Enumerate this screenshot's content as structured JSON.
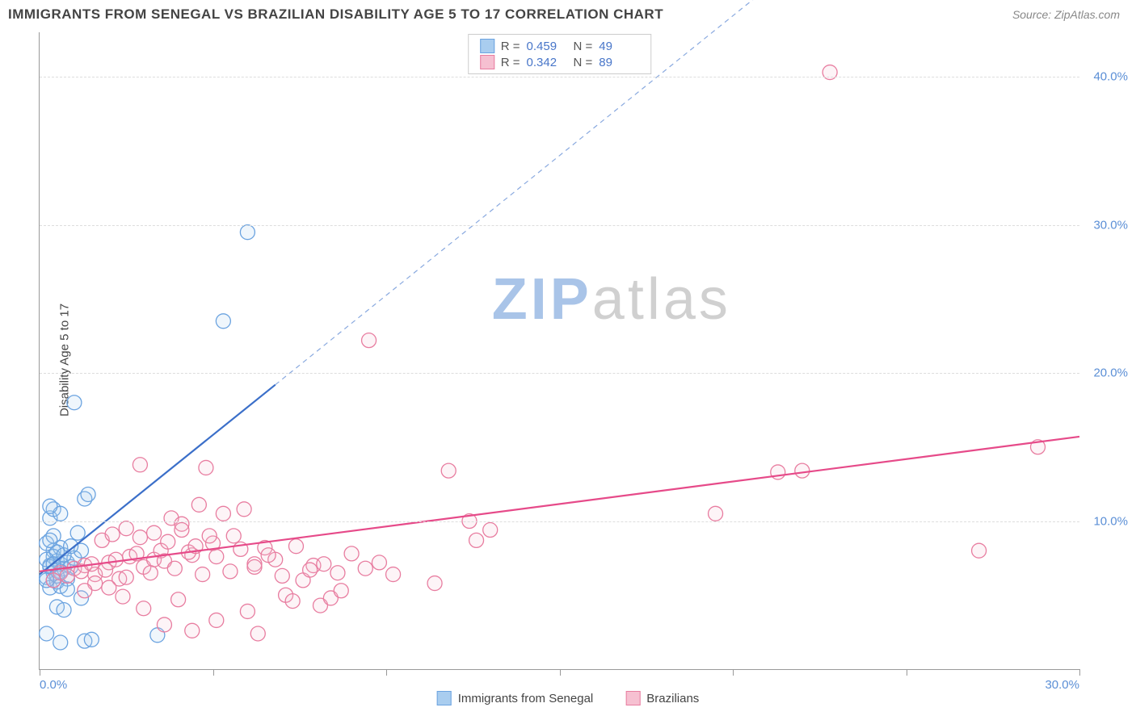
{
  "title": "IMMIGRANTS FROM SENEGAL VS BRAZILIAN DISABILITY AGE 5 TO 17 CORRELATION CHART",
  "source": "Source: ZipAtlas.com",
  "ylabel": "Disability Age 5 to 17",
  "watermark": {
    "part1": "ZIP",
    "part2": "atlas",
    "color1": "#a9c4e8",
    "color2": "#d0d0d0"
  },
  "chart": {
    "type": "scatter",
    "background_color": "#ffffff",
    "grid_color": "#dddddd",
    "axis_color": "#999999",
    "xlim": [
      0,
      30
    ],
    "ylim": [
      0,
      43
    ],
    "xticks": [
      0,
      5,
      10,
      15,
      20,
      25,
      30
    ],
    "yticks": [
      10,
      20,
      30,
      40
    ],
    "xtick_labels": {
      "0": "0.0%",
      "30": "30.0%"
    },
    "ytick_labels": {
      "10": "10.0%",
      "20": "20.0%",
      "30": "30.0%",
      "40": "40.0%"
    },
    "ytick_color": "#5b8fd6",
    "xtick_color": "#5b8fd6",
    "marker_radius": 9,
    "marker_stroke_width": 1.3,
    "marker_fill_opacity": 0.18,
    "line_width": 2.2,
    "dash_pattern": "6,5"
  },
  "series": [
    {
      "name": "Immigrants from Senegal",
      "color_stroke": "#6ba3e0",
      "color_fill": "#a9cdef",
      "line_color": "#3b6fc9",
      "R": "0.459",
      "N": "49",
      "trend": {
        "x1": 0,
        "y1": 6.4,
        "x2": 6.8,
        "y2": 19.2,
        "ext_x2": 21,
        "ext_y2": 46
      },
      "points": [
        [
          0.2,
          6.2
        ],
        [
          0.3,
          7.0
        ],
        [
          0.4,
          6.5
        ],
        [
          0.5,
          7.3
        ],
        [
          0.4,
          8.0
        ],
        [
          0.6,
          7.1
        ],
        [
          0.7,
          6.8
        ],
        [
          0.3,
          5.5
        ],
        [
          0.5,
          5.9
        ],
        [
          0.2,
          8.5
        ],
        [
          0.8,
          7.2
        ],
        [
          0.9,
          6.9
        ],
        [
          0.4,
          9.0
        ],
        [
          0.6,
          8.2
        ],
        [
          1.0,
          7.5
        ],
        [
          1.2,
          8.0
        ],
        [
          0.3,
          10.2
        ],
        [
          0.4,
          10.8
        ],
        [
          0.6,
          10.5
        ],
        [
          1.1,
          9.2
        ],
        [
          1.3,
          11.5
        ],
        [
          1.4,
          11.8
        ],
        [
          0.3,
          11.0
        ],
        [
          0.5,
          4.2
        ],
        [
          0.7,
          4.0
        ],
        [
          1.2,
          4.8
        ],
        [
          0.2,
          2.4
        ],
        [
          0.6,
          1.8
        ],
        [
          1.3,
          1.9
        ],
        [
          1.5,
          2.0
        ],
        [
          3.4,
          2.3
        ],
        [
          1.0,
          18.0
        ],
        [
          5.3,
          23.5
        ],
        [
          6.0,
          29.5
        ],
        [
          0.4,
          7.6
        ],
        [
          0.6,
          6.6
        ],
        [
          0.8,
          6.1
        ],
        [
          0.3,
          6.9
        ],
        [
          0.5,
          7.9
        ],
        [
          0.2,
          7.4
        ],
        [
          0.4,
          6.0
        ],
        [
          0.7,
          7.7
        ],
        [
          0.9,
          8.3
        ],
        [
          0.3,
          8.7
        ],
        [
          0.5,
          6.3
        ],
        [
          0.6,
          5.6
        ],
        [
          0.8,
          5.4
        ],
        [
          0.2,
          6.0
        ],
        [
          0.4,
          7.1
        ]
      ]
    },
    {
      "name": "Brazilians",
      "color_stroke": "#e87da0",
      "color_fill": "#f6c0d1",
      "line_color": "#e64a89",
      "R": "0.342",
      "N": "89",
      "trend": {
        "x1": 0,
        "y1": 6.6,
        "x2": 30,
        "y2": 15.7,
        "ext_x2": 30,
        "ext_y2": 15.7
      },
      "points": [
        [
          0.6,
          6.5
        ],
        [
          1.0,
          6.8
        ],
        [
          1.3,
          7.0
        ],
        [
          1.6,
          6.4
        ],
        [
          2.0,
          7.2
        ],
        [
          2.3,
          6.1
        ],
        [
          2.6,
          7.6
        ],
        [
          3.0,
          6.9
        ],
        [
          3.3,
          7.4
        ],
        [
          3.5,
          8.0
        ],
        [
          3.8,
          10.2
        ],
        [
          4.1,
          9.8
        ],
        [
          4.4,
          7.7
        ],
        [
          4.6,
          11.1
        ],
        [
          5.0,
          8.5
        ],
        [
          5.3,
          10.5
        ],
        [
          5.6,
          9.0
        ],
        [
          5.9,
          10.8
        ],
        [
          6.2,
          7.1
        ],
        [
          6.5,
          8.2
        ],
        [
          6.8,
          7.4
        ],
        [
          7.1,
          5.0
        ],
        [
          7.3,
          4.6
        ],
        [
          7.6,
          6.0
        ],
        [
          2.9,
          13.8
        ],
        [
          4.8,
          13.6
        ],
        [
          9.5,
          22.2
        ],
        [
          12.4,
          10.0
        ],
        [
          12.6,
          8.7
        ],
        [
          13.0,
          9.4
        ],
        [
          8.1,
          4.3
        ],
        [
          8.4,
          4.8
        ],
        [
          8.7,
          5.3
        ],
        [
          7.9,
          7.0
        ],
        [
          6.0,
          3.9
        ],
        [
          6.3,
          2.4
        ],
        [
          5.1,
          3.3
        ],
        [
          4.4,
          2.6
        ],
        [
          4.0,
          4.7
        ],
        [
          3.6,
          3.0
        ],
        [
          3.0,
          4.1
        ],
        [
          2.4,
          4.9
        ],
        [
          2.0,
          5.5
        ],
        [
          1.6,
          5.8
        ],
        [
          1.3,
          5.3
        ],
        [
          11.4,
          5.8
        ],
        [
          11.8,
          13.4
        ],
        [
          19.5,
          10.5
        ],
        [
          21.3,
          13.3
        ],
        [
          22.0,
          13.4
        ],
        [
          22.8,
          40.3
        ],
        [
          27.1,
          8.0
        ],
        [
          28.8,
          15.0
        ],
        [
          0.4,
          6.0
        ],
        [
          0.8,
          6.3
        ],
        [
          1.2,
          6.6
        ],
        [
          1.5,
          7.1
        ],
        [
          1.9,
          6.7
        ],
        [
          2.2,
          7.4
        ],
        [
          2.5,
          6.2
        ],
        [
          2.8,
          7.8
        ],
        [
          3.2,
          6.5
        ],
        [
          3.6,
          7.3
        ],
        [
          3.9,
          6.8
        ],
        [
          4.3,
          7.9
        ],
        [
          4.7,
          6.4
        ],
        [
          5.1,
          7.6
        ],
        [
          5.5,
          6.6
        ],
        [
          5.8,
          8.1
        ],
        [
          6.2,
          6.9
        ],
        [
          6.6,
          7.7
        ],
        [
          7.0,
          6.3
        ],
        [
          7.4,
          8.3
        ],
        [
          7.8,
          6.7
        ],
        [
          8.2,
          7.1
        ],
        [
          8.6,
          6.5
        ],
        [
          9.0,
          7.8
        ],
        [
          9.4,
          6.8
        ],
        [
          9.8,
          7.2
        ],
        [
          10.2,
          6.4
        ],
        [
          1.8,
          8.7
        ],
        [
          2.1,
          9.1
        ],
        [
          2.5,
          9.5
        ],
        [
          2.9,
          8.9
        ],
        [
          3.3,
          9.2
        ],
        [
          3.7,
          8.6
        ],
        [
          4.1,
          9.4
        ],
        [
          4.5,
          8.3
        ],
        [
          4.9,
          9.0
        ]
      ]
    }
  ],
  "legend": {
    "items": [
      {
        "label": "Immigrants from Senegal",
        "swatch_fill": "#a9cdef",
        "swatch_stroke": "#6ba3e0"
      },
      {
        "label": "Brazilians",
        "swatch_fill": "#f6c0d1",
        "swatch_stroke": "#e87da0"
      }
    ]
  }
}
